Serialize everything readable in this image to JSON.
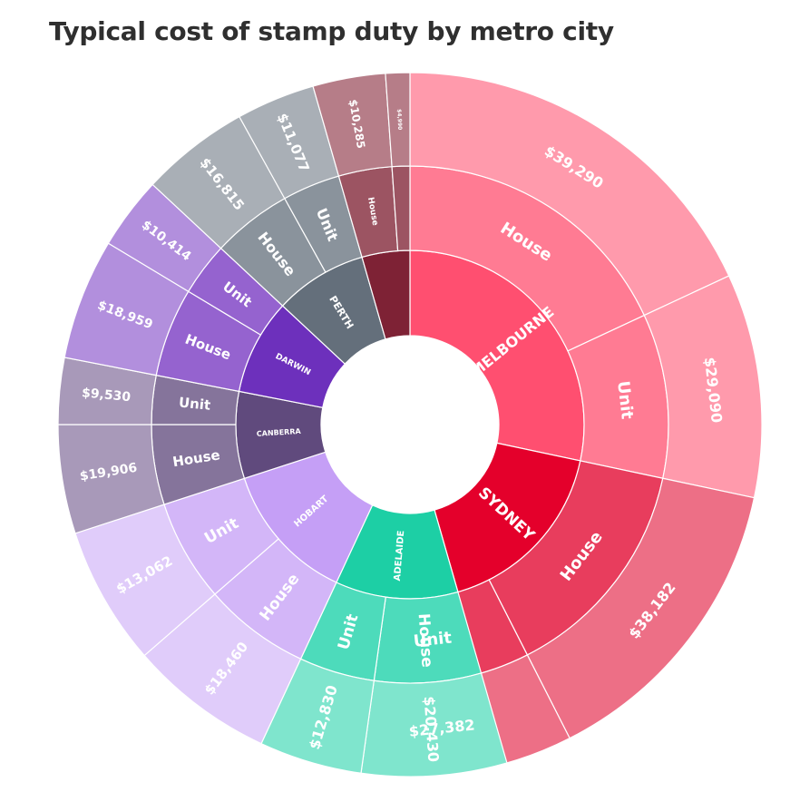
{
  "chart_data": {
    "type": "sunburst",
    "title": "Typical cost of stamp duty by metro city",
    "cities": [
      {
        "name": "MELBOURNE",
        "color": "#ff4f70",
        "children": [
          {
            "name": "House",
            "value": "$39,290",
            "color": "#ff7b93",
            "outerColor": "#ff9aac"
          },
          {
            "name": "Unit",
            "value": "$29,090",
            "color": "#ff7b93",
            "outerColor": "#ff9aac"
          }
        ]
      },
      {
        "name": "SYDNEY",
        "color": "#e4002b",
        "children": [
          {
            "name": "House",
            "value": "$38,182",
            "color": "#e83d5d",
            "outerColor": "#ed6f86"
          },
          {
            "name": "Unit",
            "value": "$27,382",
            "color": "#e83d5d",
            "outerColor": "#ed6f86"
          }
        ]
      },
      {
        "name": "ADELAIDE",
        "color": "#1dcfa5",
        "children": [
          {
            "name": "House",
            "value": "$20,430",
            "color": "#4ddbbb",
            "outerColor": "#7fe5cd"
          },
          {
            "name": "Unit",
            "value": "$12,830",
            "color": "#4ddbbb",
            "outerColor": "#7fe5cd"
          }
        ]
      },
      {
        "name": "HOBART",
        "color": "#c59ff6",
        "children": [
          {
            "name": "House",
            "value": "$18,460",
            "color": "#d3b6f8",
            "outerColor": "#e0ccfa"
          },
          {
            "name": "Unit",
            "value": "$13,062",
            "color": "#d3b6f8",
            "outerColor": "#e0ccfa"
          }
        ]
      },
      {
        "name": "CANBERRA",
        "color": "#604a7d",
        "children": [
          {
            "name": "House",
            "value": "$19,906",
            "color": "#85749b",
            "outerColor": "#a899b9"
          },
          {
            "name": "Unit",
            "value": "$9,530",
            "color": "#85749b",
            "outerColor": "#a899b9"
          }
        ]
      },
      {
        "name": "DARWIN",
        "color": "#6d30bc",
        "children": [
          {
            "name": "House",
            "value": "$18,959",
            "color": "#9563cf",
            "outerColor": "#b28fdd"
          },
          {
            "name": "Unit",
            "value": "$10,414",
            "color": "#9563cf",
            "outerColor": "#b28fdd"
          }
        ]
      },
      {
        "name": "PERTH",
        "color": "#646f7b",
        "children": [
          {
            "name": "House",
            "value": "$16,815",
            "color": "#8a939c",
            "outerColor": "#a9afb6"
          },
          {
            "name": "Unit",
            "value": "$11,077",
            "color": "#8a939c",
            "outerColor": "#a9afb6"
          }
        ]
      },
      {
        "name": "",
        "color": "#7e2235",
        "children": [
          {
            "name": "House",
            "value": "$10,285",
            "color": "#9c5462",
            "outerColor": "#b67d88"
          },
          {
            "name": "",
            "value": "$4,990",
            "color": "#9c5462",
            "outerColor": "#b67d88"
          }
        ]
      }
    ]
  }
}
